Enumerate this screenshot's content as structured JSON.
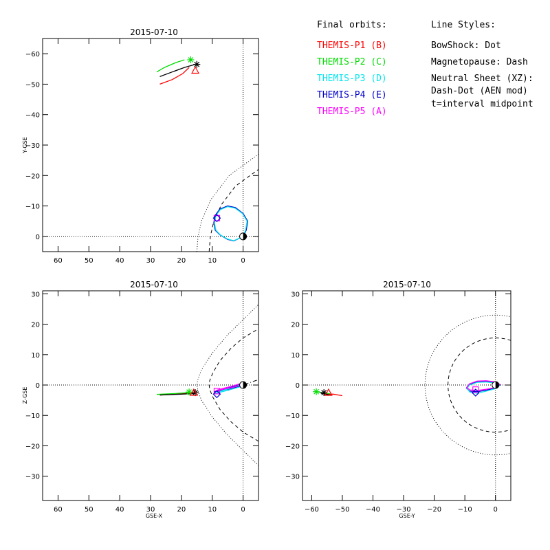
{
  "colors": {
    "p1": "#ff0000",
    "p2": "#00dd00",
    "p3": "#00e5ee",
    "p4": "#0000cc",
    "p5": "#ff00ff",
    "axis": "#000000"
  },
  "legend": {
    "header_orbits": "Final orbits:",
    "probes": [
      {
        "label": "THEMIS-P1 (B)",
        "color_key": "p1"
      },
      {
        "label": "THEMIS-P2 (C)",
        "color_key": "p2"
      },
      {
        "label": "THEMIS-P3 (D)",
        "color_key": "p3"
      },
      {
        "label": "THEMIS-P4 (E)",
        "color_key": "p4"
      },
      {
        "label": "THEMIS-P5 (A)",
        "color_key": "p5"
      }
    ],
    "header_styles": "Line Styles:",
    "styles": [
      "BowShock: Dot",
      "Magnetopause: Dash",
      "Neutral Sheet (XZ):",
      "  Dash-Dot (AEN mod)",
      "  t=interval midpoint"
    ]
  },
  "chart_data": [
    {
      "type": "line",
      "panel": "xy",
      "title": "2015-07-10",
      "xlabel": "",
      "ylabel": "Y-GSE",
      "xlim": [
        65,
        -5
      ],
      "ylim": [
        5,
        -65
      ],
      "xticks": [
        60,
        50,
        40,
        30,
        20,
        10,
        0
      ],
      "yticks": [
        -60,
        -50,
        -40,
        -30,
        -20,
        -10,
        0
      ],
      "series": [
        {
          "color_key": "p1",
          "x": [
            27,
            23,
            19.5,
            17.5
          ],
          "y": [
            -50,
            -51.5,
            -53.5,
            -55.5
          ]
        },
        {
          "color_key": "p2",
          "x": [
            28,
            25.5,
            22,
            19
          ],
          "y": [
            -54,
            -55.5,
            -57,
            -58
          ]
        },
        {
          "color_key": "axis",
          "x": [
            27,
            23,
            19,
            15.5
          ],
          "y": [
            -52.5,
            -54,
            -55.5,
            -56.5
          ]
        },
        {
          "color_key": "p4",
          "x": [
            0,
            -1,
            -1.5,
            0,
            2.5,
            5,
            7.5,
            9,
            9.5,
            9,
            7.5,
            5,
            3,
            0
          ],
          "y": [
            0,
            -2,
            -5,
            -7.5,
            -9.5,
            -10,
            -9,
            -7,
            -4.5,
            -2,
            -0.5,
            1,
            1.5,
            0
          ]
        },
        {
          "color_key": "p3",
          "x": [
            0,
            -0.8,
            -1.3,
            0.2,
            2.6,
            5,
            7.4,
            8.8,
            9.3,
            8.8,
            7.4,
            5,
            3,
            0
          ],
          "y": [
            0,
            -2,
            -5,
            -7.5,
            -9.3,
            -9.8,
            -8.8,
            -6.8,
            -4.4,
            -2,
            -0.5,
            0.9,
            1.4,
            0
          ]
        }
      ],
      "markers": [
        {
          "symbol": "asterisk",
          "color_key": "axis",
          "x": 15,
          "y": -56.5
        },
        {
          "symbol": "asterisk",
          "color_key": "p2",
          "x": 17,
          "y": -58
        },
        {
          "symbol": "triangle",
          "color_key": "p1",
          "x": 15.5,
          "y": -54.5
        },
        {
          "symbol": "square",
          "color_key": "p5",
          "x": 8.5,
          "y": -6
        },
        {
          "symbol": "diamond",
          "color_key": "p4",
          "x": 8.5,
          "y": -6
        },
        {
          "symbol": "earth",
          "color_key": "axis",
          "x": 0,
          "y": 0
        }
      ],
      "bowshock": {
        "x": [
          15,
          14.6,
          13.5,
          10.5,
          4.5,
          -5
        ],
        "y": [
          5,
          0,
          -5,
          -12,
          -20,
          -27
        ]
      },
      "magnetopause": {
        "x": [
          11,
          10.6,
          9.5,
          7,
          2.5,
          -5
        ],
        "y": [
          5,
          0,
          -5,
          -10.5,
          -16.5,
          -22
        ]
      }
    },
    {
      "type": "line",
      "panel": "xz",
      "title": "2015-07-10",
      "xlabel": "GSE-X",
      "ylabel": "Z-GSE",
      "xlim": [
        65,
        -5
      ],
      "ylim": [
        -38,
        31
      ],
      "xticks": [
        60,
        50,
        40,
        30,
        20,
        10,
        0
      ],
      "yticks": [
        -30,
        -20,
        -10,
        0,
        10,
        20,
        30
      ],
      "series": [
        {
          "color_key": "p1",
          "x": [
            27,
            20,
            16
          ],
          "y": [
            -3.3,
            -2.9,
            -2.6
          ]
        },
        {
          "color_key": "p2",
          "x": [
            28,
            22,
            18
          ],
          "y": [
            -3.1,
            -2.8,
            -2.5
          ]
        },
        {
          "color_key": "axis",
          "x": [
            27,
            20,
            15.5
          ],
          "y": [
            -3.3,
            -3,
            -2.8
          ]
        },
        {
          "color_key": "p4",
          "x": [
            9.5,
            6,
            3,
            0,
            -0.5,
            0,
            3,
            6,
            9
          ],
          "y": [
            -2.2,
            -1.6,
            -1,
            0,
            0.3,
            0.6,
            -0.5,
            -1.3,
            -2
          ]
        },
        {
          "color_key": "p3",
          "x": [
            9,
            6,
            3,
            0,
            -0.4,
            0,
            3,
            6,
            8.5
          ],
          "y": [
            -2.8,
            -2,
            -1.2,
            -0.3,
            0,
            0.4,
            -0.7,
            -1.6,
            -2.4
          ]
        },
        {
          "color_key": "p5",
          "x": [
            9,
            6,
            3,
            0,
            -0.3,
            0,
            3,
            6,
            8.5
          ],
          "y": [
            -2,
            -1.3,
            -0.7,
            0.1,
            0.4,
            0.7,
            -0.2,
            -1,
            -1.7
          ]
        }
      ],
      "markers": [
        {
          "symbol": "asterisk",
          "color_key": "axis",
          "x": 15.5,
          "y": -2.5
        },
        {
          "symbol": "asterisk",
          "color_key": "p2",
          "x": 17.5,
          "y": -2.3
        },
        {
          "symbol": "triangle",
          "color_key": "p1",
          "x": 16,
          "y": -2.5
        },
        {
          "symbol": "square",
          "color_key": "p5",
          "x": 8.5,
          "y": -2
        },
        {
          "symbol": "diamond",
          "color_key": "p4",
          "x": 8.5,
          "y": -3
        },
        {
          "symbol": "earth",
          "color_key": "axis",
          "x": 0,
          "y": 0
        }
      ],
      "bowshock": {
        "x": [
          -5,
          0,
          5,
          10,
          13.5,
          14.6,
          15,
          14.6,
          13.5,
          10,
          5,
          0,
          -5
        ],
        "y": [
          -26.5,
          -21.5,
          -16.5,
          -10.5,
          -5,
          -2,
          0,
          2,
          5,
          10.5,
          16.5,
          21.5,
          26.5
        ]
      },
      "magnetopause": {
        "x": [
          -5,
          0,
          4,
          7.5,
          9.8,
          10.8,
          11,
          10.8,
          9.8,
          7.5,
          4,
          0,
          -5
        ],
        "y": [
          -18.5,
          -15.5,
          -12,
          -8,
          -4,
          -1.5,
          0,
          1.5,
          4,
          8,
          12,
          15.5,
          18.5
        ]
      },
      "neutral_sheet": {
        "x": [
          5,
          0,
          -5
        ],
        "y": [
          -1.8,
          0,
          1.8
        ]
      }
    },
    {
      "type": "line",
      "panel": "yz",
      "title": "2015-07-10",
      "xlabel": "GSE-Y",
      "ylabel": "",
      "xlim": [
        -63,
        5
      ],
      "ylim": [
        -38,
        31
      ],
      "xticks": [
        -60,
        -50,
        -40,
        -30,
        -20,
        -10,
        0
      ],
      "yticks": [
        -30,
        -20,
        -10,
        0,
        10,
        20,
        30
      ],
      "series": [
        {
          "color_key": "p1",
          "x": [
            -56,
            -53,
            -50
          ],
          "y": [
            -3,
            -3,
            -3.5
          ]
        },
        {
          "color_key": "p2",
          "x": [
            -58,
            -56,
            -54
          ],
          "y": [
            -2.3,
            -2.6,
            -2.9
          ]
        },
        {
          "color_key": "axis",
          "x": [
            -57,
            -55,
            -53.5
          ],
          "y": [
            -2.7,
            -3.1,
            -3.4
          ]
        },
        {
          "color_key": "p4",
          "x": [
            0,
            -3,
            -6,
            -8.5,
            -9.5,
            -8.5,
            -6,
            -3,
            0,
            1.5,
            0
          ],
          "y": [
            0.8,
            1.2,
            1.1,
            0.2,
            -1,
            -2,
            -2.2,
            -1.7,
            -1,
            0,
            0.8
          ]
        },
        {
          "color_key": "p3",
          "x": [
            0,
            -3,
            -6,
            -8.5,
            -9.3,
            -8.3,
            -6,
            -3,
            0,
            1.3,
            0
          ],
          "y": [
            0.6,
            1,
            0.9,
            0,
            -1.2,
            -2.4,
            -2.7,
            -2,
            -1.2,
            -0.2,
            0.6
          ]
        },
        {
          "color_key": "p5",
          "x": [
            0,
            -3,
            -6,
            -8.5,
            -9.4,
            -8.4,
            -6,
            -3,
            0,
            1.4,
            0
          ],
          "y": [
            1,
            1.4,
            1.3,
            0.4,
            -0.8,
            -1.6,
            -1.8,
            -1.4,
            -0.8,
            0.2,
            1
          ]
        }
      ],
      "markers": [
        {
          "symbol": "asterisk",
          "color_key": "axis",
          "x": -56,
          "y": -2.5
        },
        {
          "symbol": "asterisk",
          "color_key": "p2",
          "x": -58.5,
          "y": -2.2
        },
        {
          "symbol": "triangle",
          "color_key": "p1",
          "x": -54.5,
          "y": -2.5
        },
        {
          "symbol": "square",
          "color_key": "p5",
          "x": -6.5,
          "y": -1.5
        },
        {
          "symbol": "diamond",
          "color_key": "p4",
          "x": -6.5,
          "y": -2.5
        },
        {
          "symbol": "earth",
          "color_key": "axis",
          "x": 0,
          "y": 0
        }
      ],
      "bowshock_radius": 23,
      "magnetopause_radius": 15.5
    }
  ]
}
